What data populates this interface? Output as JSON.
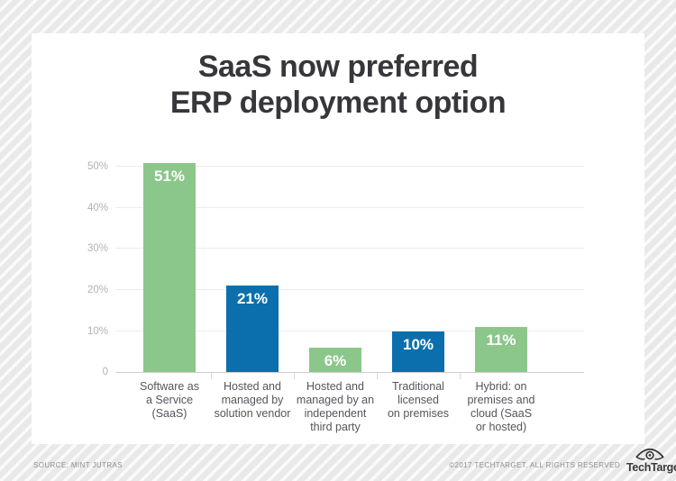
{
  "title": {
    "line1": "SaaS now preferred",
    "line2": "ERP deployment option"
  },
  "footer": {
    "source": "SOURCE: MINT JUTRAS",
    "copyright": "©2017 TECHTARGET. ALL RIGHTS RESERVED",
    "logo_text": "TechTarget"
  },
  "colors": {
    "green": "#8bc78a",
    "blue": "#0c6fad",
    "title_text": "#37373b",
    "axis_label": "#b3b3b7",
    "category_label": "#55565b",
    "gridline": "#ececee",
    "value_label": "#ffffff"
  },
  "chart_data": {
    "type": "bar",
    "title": "SaaS now preferred ERP deployment option",
    "categories": [
      "Software as a Service (SaaS)",
      "Hosted and managed by solution vendor",
      "Hosted and managed by an independent third party",
      "Traditional licensed on premises",
      "Hybrid: on premises and cloud (SaaS or hosted)"
    ],
    "category_lines": [
      [
        "Software as",
        "a Service",
        "(SaaS)"
      ],
      [
        "Hosted and",
        "managed by",
        "solution vendor"
      ],
      [
        "Hosted and",
        "managed by an",
        "independent",
        "third party"
      ],
      [
        "Traditional",
        "licensed",
        "on premises"
      ],
      [
        "Hybrid: on",
        "premises and",
        "cloud (SaaS",
        "or hosted)"
      ]
    ],
    "values": [
      51,
      21,
      6,
      10,
      11
    ],
    "value_labels": [
      "51%",
      "21%",
      "6%",
      "10%",
      "11%"
    ],
    "bar_colors": [
      "green",
      "blue",
      "green",
      "blue",
      "green"
    ],
    "xlabel": "",
    "ylabel": "",
    "ylim": [
      0,
      52.3
    ],
    "y_ticks": [
      {
        "label": "0",
        "value": 0
      },
      {
        "label": "10%",
        "value": 10
      },
      {
        "label": "20%",
        "value": 20
      },
      {
        "label": "30%",
        "value": 30
      },
      {
        "label": "40%",
        "value": 40
      },
      {
        "label": "50%",
        "value": 50
      }
    ],
    "grid": true,
    "legend": false
  }
}
